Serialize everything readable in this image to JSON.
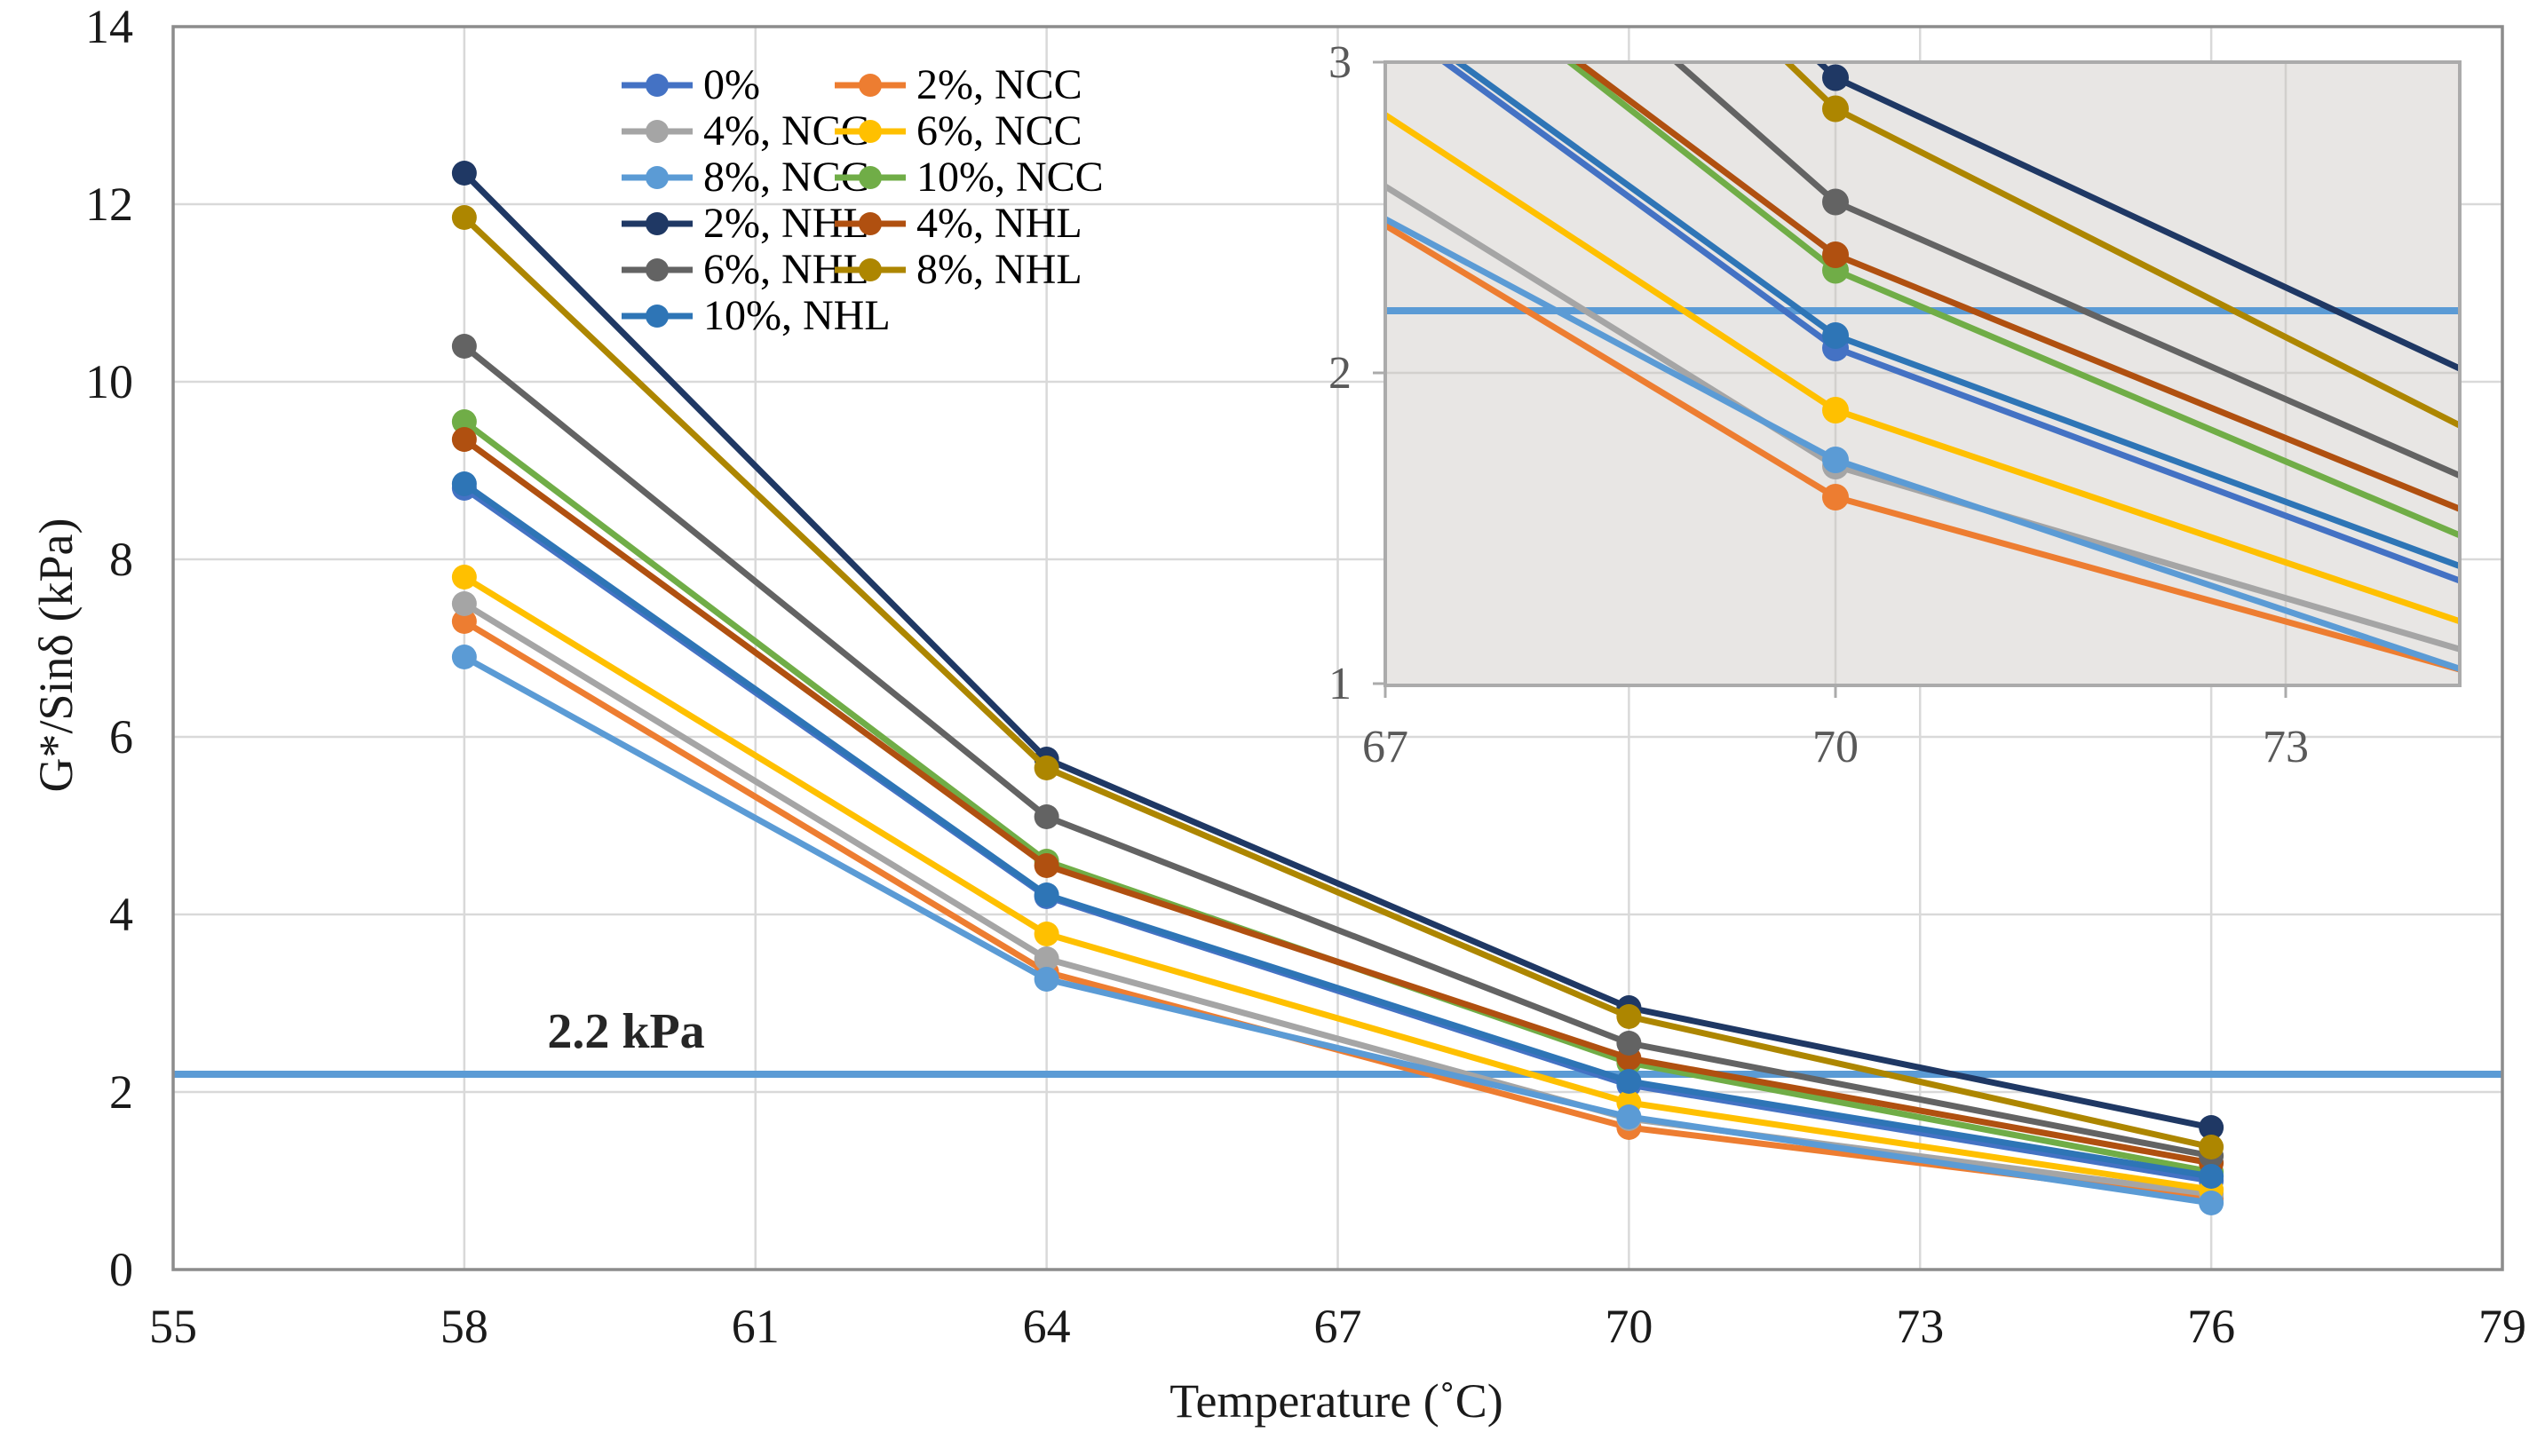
{
  "chart_data": {
    "type": "line",
    "title": "",
    "xlabel": "Temperature (˚C)",
    "ylabel": "G*/Sinδ (kPa)",
    "categories": [
      58,
      64,
      70,
      76
    ],
    "x_axis": {
      "min": 55,
      "max": 79,
      "ticks": [
        55,
        58,
        61,
        64,
        67,
        70,
        73,
        76,
        79
      ]
    },
    "y_axis": {
      "min": 0,
      "max": 14,
      "ticks": [
        0,
        2,
        4,
        6,
        8,
        10,
        12,
        14
      ]
    },
    "grid": true,
    "legend_position": "top-center-two-columns",
    "reference_line": {
      "value": 2.2,
      "label": "2.2 kPa",
      "color": "#5B9BD5"
    },
    "series": [
      {
        "name": "0%",
        "color": "#4472C4",
        "values": [
          8.8,
          4.2,
          2.08,
          1.0
        ]
      },
      {
        "name": "2%, NCC",
        "color": "#ED7D31",
        "values": [
          7.3,
          3.35,
          1.6,
          0.8
        ]
      },
      {
        "name": "4%, NCC",
        "color": "#A5A5A5",
        "values": [
          7.5,
          3.5,
          1.7,
          0.85
        ]
      },
      {
        "name": "6%, NCC",
        "color": "#FFC000",
        "values": [
          7.8,
          3.78,
          1.88,
          0.9
        ]
      },
      {
        "name": "8%, NCC",
        "color": "#5B9BD5",
        "values": [
          6.9,
          3.27,
          1.72,
          0.75
        ]
      },
      {
        "name": "10%, NCC",
        "color": "#70AD47",
        "values": [
          9.55,
          4.6,
          2.33,
          1.1
        ]
      },
      {
        "name": "2%, NHL",
        "color": "#1F3864",
        "values": [
          12.35,
          5.75,
          2.95,
          1.6
        ]
      },
      {
        "name": "4%, NHL",
        "color": "#B05010",
        "values": [
          9.35,
          4.55,
          2.38,
          1.2
        ]
      },
      {
        "name": "6%, NHL",
        "color": "#636363",
        "values": [
          10.4,
          5.1,
          2.55,
          1.28
        ]
      },
      {
        "name": "8%, NHL",
        "color": "#AD8600",
        "values": [
          11.85,
          5.65,
          2.85,
          1.38
        ]
      },
      {
        "name": "10%, NHL",
        "color": "#2E75B6",
        "values": [
          8.85,
          4.22,
          2.12,
          1.05
        ]
      }
    ],
    "legend_columns": [
      [
        "0%",
        "4%, NCC",
        "8%, NCC",
        "2%, NHL",
        "6%, NHL",
        "10%, NHL"
      ],
      [
        "2%, NCC",
        "6%, NCC",
        "10%, NCC",
        "4%, NHL",
        "8%, NHL"
      ]
    ],
    "inset": {
      "description": "zoomed view of the 67-74 °C region",
      "x_ticks": [
        67,
        70,
        73
      ],
      "y_ticks": [
        1,
        2,
        3
      ],
      "x_range": [
        67,
        74.2
      ],
      "y_range": [
        1,
        3
      ],
      "background": "#E8E6E4"
    }
  }
}
